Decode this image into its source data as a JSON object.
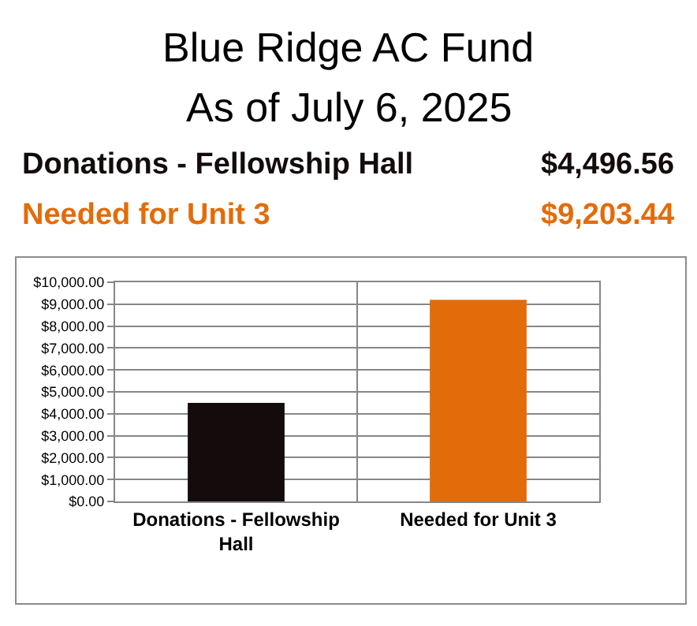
{
  "chart_data": {
    "type": "bar",
    "title": "Blue Ridge AC Fund",
    "subtitle": "As of July 6, 2025",
    "annotations": [
      "Donations - Fellowship Hall",
      "$4,496.56",
      "Needed for Unit 3",
      "$9,203.44"
    ],
    "categories": [
      "Donations - Fellowship Hall",
      "Needed for Unit 3"
    ],
    "values": [
      4496.56,
      9203.44
    ],
    "colors": [
      "#140c0c",
      "#e36c0a"
    ],
    "ylim": [
      0,
      10000
    ],
    "yticks": [
      {
        "value": 0,
        "label": "$0.00"
      },
      {
        "value": 1000,
        "label": "$1,000.00"
      },
      {
        "value": 2000,
        "label": "$2,000.00"
      },
      {
        "value": 3000,
        "label": "$3,000.00"
      },
      {
        "value": 4000,
        "label": "$4,000.00"
      },
      {
        "value": 5000,
        "label": "$5,000.00"
      },
      {
        "value": 6000,
        "label": "$6,000.00"
      },
      {
        "value": 7000,
        "label": "$7,000.00"
      },
      {
        "value": 8000,
        "label": "$8,000.00"
      },
      {
        "value": 9000,
        "label": "$9,000.00"
      },
      {
        "value": 10000,
        "label": "$10,000.00"
      }
    ],
    "grid": true
  }
}
